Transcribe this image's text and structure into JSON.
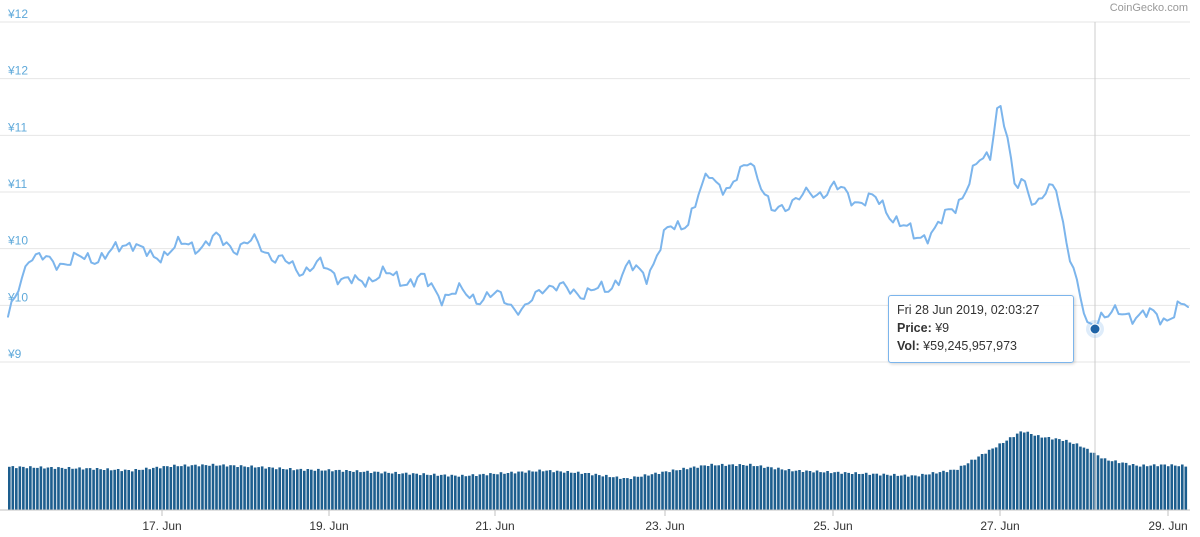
{
  "credit": "CoinGecko.com",
  "colors": {
    "line": "#7cb5ec",
    "volume": "#1d5e8e",
    "marker": "#1f63a6",
    "grid": "#e6e6e6",
    "ytick": "#5fa9da"
  },
  "tooltip": {
    "date": "Fri 28 Jun 2019, 02:03:27",
    "price_label": "Price:",
    "price_value": "¥9",
    "vol_label": "Vol:",
    "vol_value": "¥59,245,957,973"
  },
  "chart_data": {
    "type": "line",
    "title": "",
    "xlabel": "",
    "ylabel": "",
    "y_tick_labels": [
      "¥12",
      "¥12",
      "¥11",
      "¥11",
      "¥10",
      "¥10",
      "¥9"
    ],
    "x_tick_labels": [
      "17. Jun",
      "19. Jun",
      "21. Jun",
      "23. Jun",
      "25. Jun",
      "27. Jun",
      "29. Jun"
    ],
    "xlim": [
      15.0,
      29.3
    ],
    "ylim": [
      9.0,
      12.1
    ],
    "grid": true,
    "legend": "none",
    "series": [
      {
        "kind": "price",
        "x": [
          15.0,
          15.25,
          15.5,
          15.75,
          16.0,
          16.25,
          16.5,
          16.75,
          17.0,
          17.25,
          17.5,
          17.75,
          18.0,
          18.25,
          18.5,
          18.75,
          19.0,
          19.25,
          19.5,
          19.75,
          20.0,
          20.25,
          20.5,
          20.75,
          21.0,
          21.25,
          21.5,
          21.75,
          22.0,
          22.25,
          22.5,
          22.75,
          23.0,
          23.25,
          23.5,
          23.75,
          24.0,
          24.25,
          24.5,
          24.75,
          25.0,
          25.25,
          25.5,
          25.75,
          26.0,
          26.25,
          26.5,
          26.75,
          26.9,
          27.0,
          27.1,
          27.2,
          27.3,
          27.45,
          27.55,
          27.7,
          27.85,
          28.0,
          28.08,
          28.25,
          28.5,
          28.75,
          29.0,
          29.2,
          29.3
        ],
        "y": [
          9.37,
          9.98,
          9.91,
          9.92,
          9.95,
          9.98,
          10.12,
          9.92,
          10.06,
          10.05,
          10.12,
          10.05,
          10.09,
          9.95,
          9.84,
          9.88,
          9.8,
          9.7,
          9.82,
          9.74,
          9.76,
          9.61,
          9.63,
          9.58,
          9.6,
          9.44,
          9.72,
          9.65,
          9.64,
          9.65,
          9.86,
          9.8,
          10.2,
          10.3,
          10.72,
          10.55,
          10.88,
          10.35,
          10.48,
          10.52,
          10.6,
          10.48,
          10.48,
          10.32,
          10.12,
          10.22,
          10.44,
          10.8,
          10.88,
          11.42,
          11.1,
          10.55,
          10.68,
          10.45,
          10.5,
          10.6,
          10.05,
          9.55,
          9.3,
          9.45,
          9.42,
          9.45,
          9.38,
          9.52,
          9.48
        ]
      },
      {
        "kind": "volume",
        "x": [
          15.0,
          16.0,
          16.5,
          17.0,
          17.5,
          18.0,
          18.5,
          19.0,
          19.5,
          20.0,
          20.5,
          21.0,
          21.5,
          22.0,
          22.5,
          23.0,
          23.5,
          24.0,
          24.5,
          25.0,
          25.5,
          26.0,
          26.5,
          27.0,
          27.3,
          27.5,
          27.8,
          28.0,
          28.3,
          28.7,
          29.0,
          29.3
        ],
        "y": [
          47,
          45,
          43,
          48,
          49,
          47,
          44,
          43,
          41,
          39,
          37,
          40,
          43,
          40,
          34,
          42,
          49,
          49,
          43,
          41,
          39,
          37,
          44,
          70,
          86,
          80,
          76,
          70,
          55,
          48,
          49,
          48
        ]
      }
    ]
  }
}
